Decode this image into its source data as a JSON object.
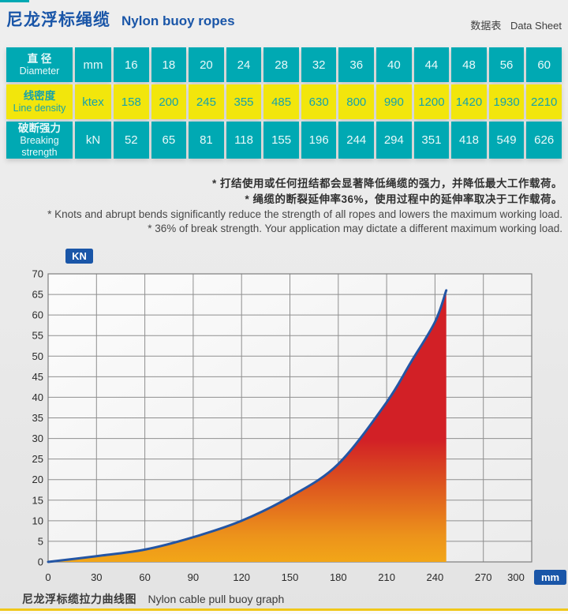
{
  "header": {
    "title_cn": "尼龙浮标绳缆",
    "title_en": "Nylon buoy ropes",
    "sheet_cn": "数据表",
    "sheet_en": "Data Sheet"
  },
  "table": {
    "rows": [
      {
        "label_cn": "直 径",
        "label_en": "Diameter",
        "unit": "mm",
        "style": "teal",
        "values": [
          "16",
          "18",
          "20",
          "24",
          "28",
          "32",
          "36",
          "40",
          "44",
          "48",
          "56",
          "60"
        ]
      },
      {
        "label_cn": "线密度",
        "label_en": "Line density",
        "unit": "ktex",
        "style": "yellow",
        "values": [
          "158",
          "200",
          "245",
          "355",
          "485",
          "630",
          "800",
          "990",
          "1200",
          "1420",
          "1930",
          "2210"
        ]
      },
      {
        "label_cn": "破断强力",
        "label_en": "Breaking strength",
        "unit": "kN",
        "style": "teal",
        "values": [
          "52",
          "65",
          "81",
          "118",
          "155",
          "196",
          "244",
          "294",
          "351",
          "418",
          "549",
          "626"
        ]
      }
    ]
  },
  "notes": {
    "cn": [
      "* 打结使用或任何扭结都会显著降低绳缆的强力，并降低最大工作载荷。",
      "* 绳缆的断裂延伸率36%，使用过程中的延伸率取决于工作载荷。"
    ],
    "en": [
      "* Knots and abrupt bends significantly reduce the strength of all ropes and lowers the maximum working load.",
      "* 36% of break strength. Your application may dictate a different maximum working load."
    ]
  },
  "chart_data": {
    "type": "area",
    "title_cn": "尼龙浮标缆拉力曲线图",
    "title_en": "Nylon cable pull buoy graph",
    "ylabel_unit": "KN",
    "xlabel_unit": "mm",
    "xlim": [
      0,
      300
    ],
    "ylim": [
      0,
      70
    ],
    "x_ticks": [
      0,
      30,
      60,
      90,
      120,
      150,
      180,
      210,
      240,
      270,
      300
    ],
    "y_ticks": [
      0,
      5,
      10,
      15,
      20,
      25,
      30,
      35,
      40,
      45,
      50,
      55,
      60,
      65,
      70
    ],
    "grid": true,
    "legend": "none",
    "series": [
      {
        "name": "pull-elongation curve",
        "points": [
          [
            0,
            0
          ],
          [
            30,
            1.4
          ],
          [
            60,
            3.0
          ],
          [
            90,
            6.0
          ],
          [
            120,
            10.0
          ],
          [
            150,
            15.8
          ],
          [
            180,
            23.8
          ],
          [
            210,
            38.8
          ],
          [
            225,
            48.5
          ],
          [
            240,
            58.3
          ],
          [
            247,
            66.0
          ]
        ]
      }
    ]
  },
  "colors": {
    "accent_blue": "#1a56a8",
    "table_teal": "#00a9b3",
    "table_yellow": "#f2e60c",
    "curve_line": "#2355a4",
    "fill_top_red": "#d22026",
    "fill_bottom_gold": "#f2a618",
    "grid_gray": "#8f8f8f",
    "bottom_rule_yellow": "#f0c81a"
  }
}
